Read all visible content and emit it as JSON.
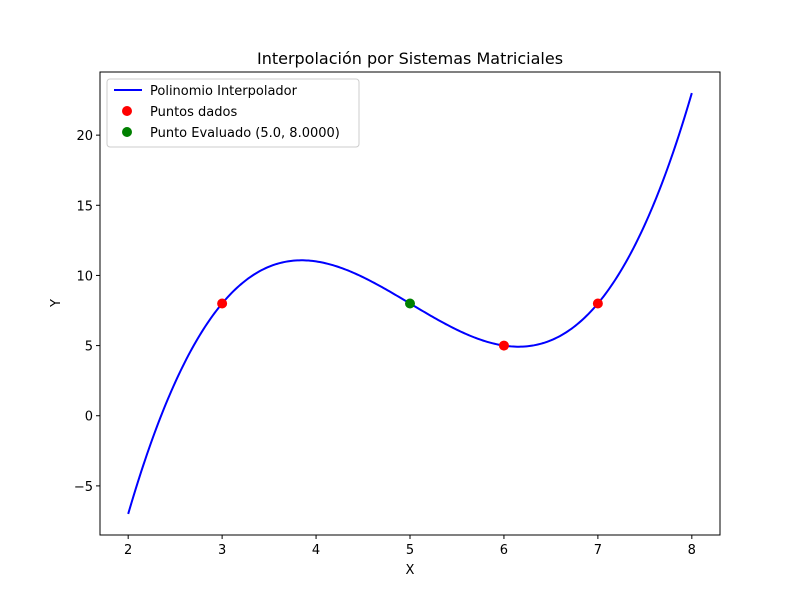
{
  "chart_data": {
    "type": "line",
    "title": "Interpolación por Sistemas Matriciales",
    "xlabel": "X",
    "ylabel": "Y",
    "xlim": [
      1.7,
      8.3
    ],
    "ylim": [
      -8.5,
      24.5
    ],
    "xticks": [
      2,
      3,
      4,
      5,
      6,
      7,
      8
    ],
    "yticks": [
      -5,
      0,
      5,
      10,
      15,
      20
    ],
    "ytick_labels": [
      "−5",
      "0",
      "5",
      "10",
      "15",
      "20"
    ],
    "grid": false,
    "legend_placement": "upper left",
    "series": [
      {
        "name": "Polinomio Interpolador",
        "kind": "line",
        "color": "#0000ff",
        "function": "y = x^3 - 15x^2 + 71x - 97",
        "x_range": [
          2,
          8
        ]
      },
      {
        "name": "Puntos dados",
        "kind": "scatter",
        "color": "#ff0000",
        "x": [
          3,
          6,
          7
        ],
        "y": [
          8,
          5,
          8
        ]
      },
      {
        "name": "Punto Evaluado (5.0, 8.0000)",
        "kind": "scatter",
        "color": "#008000",
        "x": [
          5
        ],
        "y": [
          8
        ]
      }
    ]
  }
}
